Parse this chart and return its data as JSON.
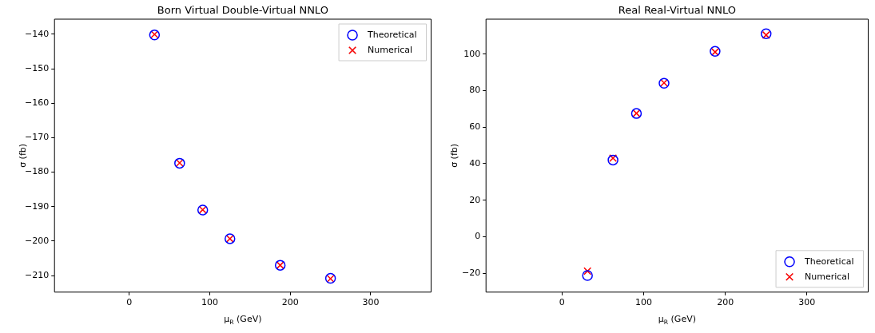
{
  "chart_data": [
    {
      "type": "scatter",
      "title": "Born Virtual Double-Virtual NNLO",
      "xlabel": "μ$_{R}$ (GeV)",
      "ylabel": "σ (fb)",
      "x": [
        31.25,
        62.5,
        91.2,
        125,
        187.5,
        250
      ],
      "series": [
        {
          "name": "Theoretical",
          "color": "#0000ff",
          "marker": "circle",
          "values": [
            -140.2,
            -177.4,
            -191.0,
            -199.3,
            -207.0,
            -210.8
          ]
        },
        {
          "name": "Numerical",
          "color": "#ff0000",
          "marker": "cross",
          "values": [
            -140.0,
            -177.3,
            -190.9,
            -199.3,
            -207.0,
            -210.9
          ]
        }
      ],
      "xlim": [
        -93,
        375
      ],
      "xticks": [
        0,
        100,
        200,
        300
      ],
      "ylim": [
        -214.8,
        -135.6
      ],
      "yticks": [
        -210,
        -200,
        -190,
        -180,
        -170,
        -160,
        -150,
        -140
      ],
      "grid": false,
      "legend": "top right"
    },
    {
      "type": "scatter",
      "title": "Real Real-Virtual NNLO",
      "xlabel": "μ$_{R}$ (GeV)",
      "ylabel": "σ (fb)",
      "x": [
        31.25,
        62.5,
        91.2,
        125,
        187.5,
        250
      ],
      "series": [
        {
          "name": "Theoretical",
          "color": "#0000ff",
          "marker": "circle",
          "values": [
            -21.3,
            42.0,
            67.5,
            84.1,
            101.6,
            111.2
          ]
        },
        {
          "name": "Numerical",
          "color": "#ff0000",
          "marker": "cross",
          "values": [
            -18.9,
            43.0,
            67.6,
            84.3,
            101.2,
            110.5
          ]
        }
      ],
      "xlim": [
        -93,
        375
      ],
      "xticks": [
        0,
        100,
        200,
        300
      ],
      "ylim": [
        -30.4,
        119.2
      ],
      "yticks": [
        -20,
        0,
        20,
        40,
        60,
        80,
        100
      ],
      "grid": false,
      "legend": "bottom right"
    }
  ]
}
